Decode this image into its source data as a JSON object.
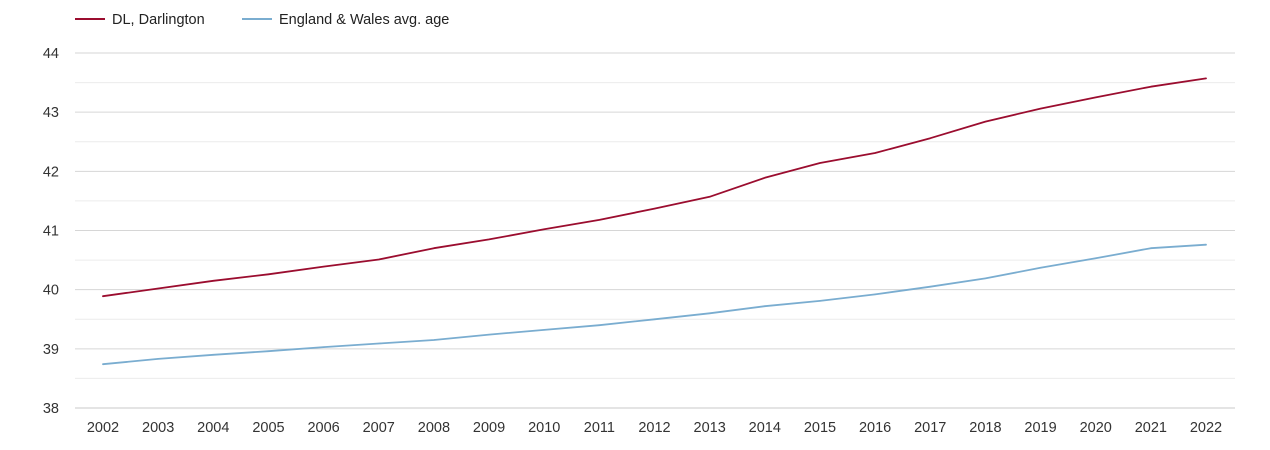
{
  "chart_data": {
    "type": "line",
    "title": "",
    "xlabel": "",
    "ylabel": "",
    "categories": [
      "2002",
      "2003",
      "2004",
      "2005",
      "2006",
      "2007",
      "2008",
      "2009",
      "2010",
      "2011",
      "2012",
      "2013",
      "2014",
      "2015",
      "2016",
      "2017",
      "2018",
      "2019",
      "2020",
      "2021",
      "2022"
    ],
    "yticks": [
      38,
      39,
      40,
      41,
      42,
      43,
      44
    ],
    "ylim": [
      38,
      44
    ],
    "minor_gridlines": true,
    "legend_position": "top-left",
    "series": [
      {
        "name": "DL, Darlington",
        "color": "#9b0d2f",
        "values": [
          39.89,
          40.02,
          40.15,
          40.26,
          40.39,
          40.51,
          40.7,
          40.85,
          41.02,
          41.18,
          41.37,
          41.57,
          41.89,
          42.14,
          42.31,
          42.56,
          42.84,
          43.06,
          43.25,
          43.43,
          43.57
        ]
      },
      {
        "name": "England & Wales avg. age",
        "color": "#7aadd0",
        "values": [
          38.74,
          38.83,
          38.9,
          38.96,
          39.03,
          39.09,
          39.15,
          39.24,
          39.32,
          39.4,
          39.5,
          39.6,
          39.72,
          39.81,
          39.92,
          40.05,
          40.19,
          40.37,
          40.53,
          40.7,
          40.76
        ]
      }
    ]
  }
}
